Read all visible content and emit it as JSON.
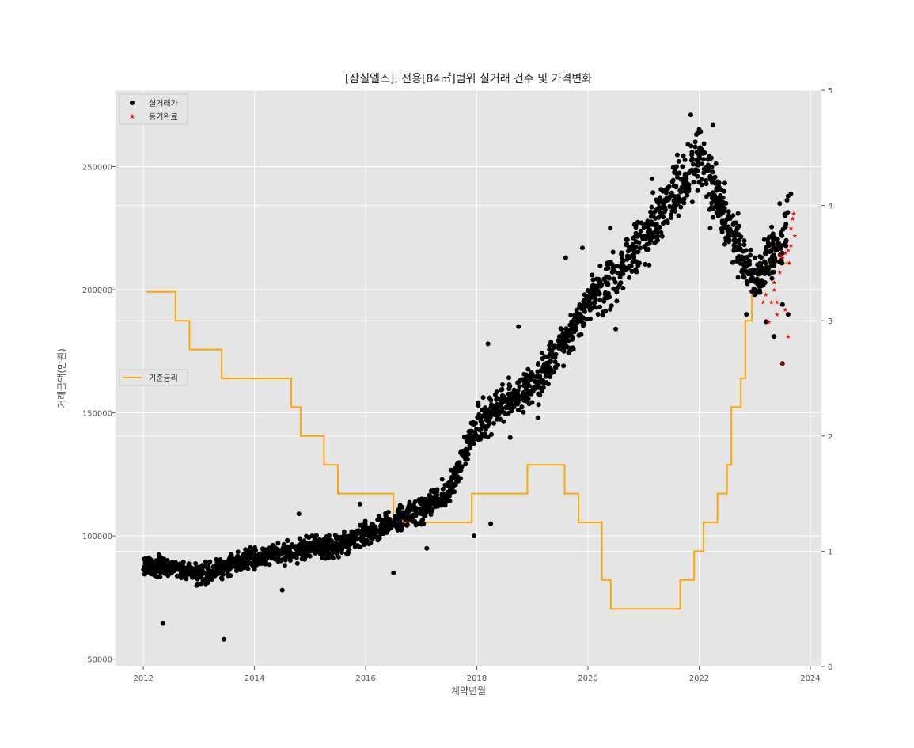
{
  "chart_data": {
    "type": "scatter",
    "title": "[잠실엘스], 전용[84㎡]범위 실거래 건수 및 가격변화",
    "xlabel": "계약년월",
    "ylabel": "거래금액(만원)",
    "xlim": [
      2011.5,
      2024.2
    ],
    "ylim": [
      47000,
      281000
    ],
    "y2lim": [
      0,
      5
    ],
    "x_ticks": [
      "2012",
      "2014",
      "2016",
      "2018",
      "2020",
      "2022",
      "2024"
    ],
    "y_ticks": [
      "50000",
      "100000",
      "150000",
      "200000",
      "250000"
    ],
    "y2_ticks": [
      "0",
      "1",
      "2",
      "3",
      "4",
      "5"
    ],
    "grid": true,
    "background": "#e5e5e5",
    "legend_top": {
      "placement": "upper-left",
      "entries": [
        "실거래가",
        "등기완료"
      ]
    },
    "legend_rate": {
      "placement": "center-left",
      "entries": [
        "기준금리"
      ]
    },
    "series": [
      {
        "name": "실거래가",
        "kind": "scatter",
        "marker": "circle",
        "color": "#000000",
        "trend": [
          [
            2012.0,
            88000
          ],
          [
            2012.5,
            87000
          ],
          [
            2013.0,
            84000
          ],
          [
            2013.5,
            88000
          ],
          [
            2014.0,
            91000
          ],
          [
            2014.5,
            93000
          ],
          [
            2015.0,
            95000
          ],
          [
            2015.5,
            96000
          ],
          [
            2016.0,
            100000
          ],
          [
            2016.5,
            106000
          ],
          [
            2017.0,
            110000
          ],
          [
            2017.5,
            118000
          ],
          [
            2018.0,
            145000
          ],
          [
            2018.5,
            155000
          ],
          [
            2019.0,
            160000
          ],
          [
            2019.5,
            175000
          ],
          [
            2020.0,
            195000
          ],
          [
            2020.5,
            205000
          ],
          [
            2021.0,
            222000
          ],
          [
            2021.5,
            238000
          ],
          [
            2022.0,
            255000
          ],
          [
            2022.5,
            228000
          ],
          [
            2023.0,
            203000
          ],
          [
            2023.5,
            220000
          ],
          [
            2023.6,
            228000
          ]
        ],
        "count": 2200,
        "extra_points": [
          [
            2012.35,
            64500
          ],
          [
            2013.45,
            58000
          ],
          [
            2014.5,
            78000
          ],
          [
            2014.8,
            109000
          ],
          [
            2015.9,
            113000
          ],
          [
            2016.5,
            85000
          ],
          [
            2017.1,
            95000
          ],
          [
            2017.95,
            100000
          ],
          [
            2018.25,
            105000
          ],
          [
            2018.2,
            178000
          ],
          [
            2018.75,
            185000
          ],
          [
            2018.6,
            140000
          ],
          [
            2019.2,
            168000
          ],
          [
            2019.35,
            175000
          ],
          [
            2019.1,
            148000
          ],
          [
            2019.6,
            213000
          ],
          [
            2019.9,
            217000
          ],
          [
            2020.4,
            225000
          ],
          [
            2020.4,
            192000
          ],
          [
            2020.5,
            184000
          ],
          [
            2021.1,
            210000
          ],
          [
            2021.15,
            245000
          ],
          [
            2021.6,
            235000
          ],
          [
            2021.7,
            250000
          ],
          [
            2021.8,
            259000
          ],
          [
            2021.85,
            271000
          ],
          [
            2021.95,
            263000
          ],
          [
            2022.0,
            265000
          ],
          [
            2022.05,
            251000
          ],
          [
            2022.2,
            253000
          ],
          [
            2022.25,
            267000
          ],
          [
            2022.2,
            225000
          ],
          [
            2022.3,
            234000
          ],
          [
            2022.35,
            242000
          ],
          [
            2022.45,
            240000
          ],
          [
            2022.6,
            222000
          ],
          [
            2022.7,
            231000
          ],
          [
            2022.7,
            205000
          ],
          [
            2022.85,
            190000
          ],
          [
            2023.0,
            213000
          ],
          [
            2023.2,
            187000
          ],
          [
            2023.35,
            181000
          ],
          [
            2023.5,
            170000
          ],
          [
            2023.5,
            194000
          ],
          [
            2023.6,
            190000
          ],
          [
            2023.55,
            230000
          ],
          [
            2023.6,
            238000
          ],
          [
            2023.65,
            239000
          ],
          [
            2023.45,
            235000
          ]
        ]
      },
      {
        "name": "등기완료",
        "kind": "scatter",
        "marker": "star",
        "color": "#ff0000",
        "points": [
          [
            2023.15,
            195000
          ],
          [
            2023.2,
            198000
          ],
          [
            2023.25,
            187000
          ],
          [
            2023.3,
            195000
          ],
          [
            2023.35,
            200000
          ],
          [
            2023.35,
            203000
          ],
          [
            2023.4,
            195000
          ],
          [
            2023.45,
            207000
          ],
          [
            2023.5,
            213000
          ],
          [
            2023.55,
            215000
          ],
          [
            2023.6,
            216000
          ],
          [
            2023.65,
            218000
          ],
          [
            2023.45,
            214000
          ],
          [
            2023.55,
            192000
          ],
          [
            2023.6,
            181000
          ],
          [
            2023.62,
            211000
          ],
          [
            2023.65,
            225000
          ],
          [
            2023.68,
            229000
          ],
          [
            2023.7,
            231000
          ],
          [
            2023.72,
            222000
          ],
          [
            2023.4,
            190000
          ],
          [
            2023.5,
            170000
          ]
        ]
      },
      {
        "name": "기준금리",
        "kind": "step",
        "axis": "right",
        "color": "#ffa500",
        "points": [
          [
            2012.05,
            3.25
          ],
          [
            2012.58,
            3.0
          ],
          [
            2012.83,
            2.75
          ],
          [
            2013.41,
            2.5
          ],
          [
            2014.66,
            2.25
          ],
          [
            2014.83,
            2.0
          ],
          [
            2015.25,
            1.75
          ],
          [
            2015.5,
            1.5
          ],
          [
            2016.5,
            1.25
          ],
          [
            2017.91,
            1.5
          ],
          [
            2018.91,
            1.75
          ],
          [
            2019.58,
            1.5
          ],
          [
            2019.83,
            1.25
          ],
          [
            2020.25,
            0.75
          ],
          [
            2020.41,
            0.5
          ],
          [
            2021.66,
            0.75
          ],
          [
            2021.91,
            1.0
          ],
          [
            2022.08,
            1.25
          ],
          [
            2022.33,
            1.5
          ],
          [
            2022.5,
            1.75
          ],
          [
            2022.58,
            2.25
          ],
          [
            2022.75,
            2.5
          ],
          [
            2022.83,
            3.0
          ],
          [
            2022.95,
            3.25
          ],
          [
            2023.08,
            3.5
          ],
          [
            2023.6,
            3.5
          ]
        ]
      }
    ]
  }
}
